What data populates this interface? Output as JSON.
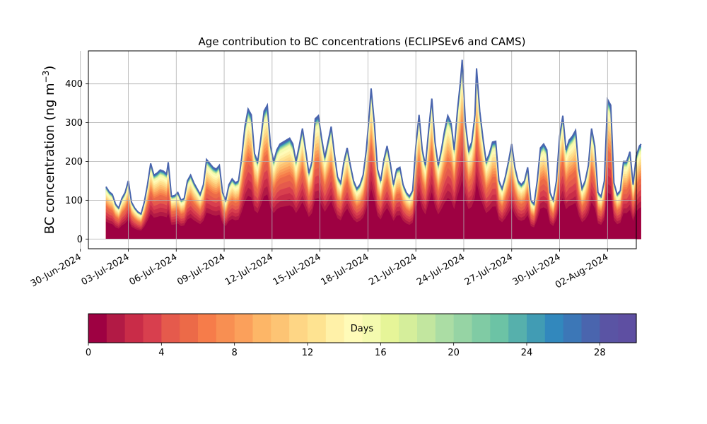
{
  "chart_data": {
    "type": "area",
    "title": "Age contribution to BC concentrations (ECLIPSEv6 and CAMS)",
    "ylabel": "BC concentration (ng m",
    "ylabel_sup": "−3",
    "ylabel_close": ")",
    "xlabel": "",
    "ylim": [
      -25,
      485
    ],
    "yticks": [
      0,
      100,
      200,
      300,
      400
    ],
    "grid": true,
    "x_axis": {
      "start_date": "2024-06-29",
      "xlim_days": [
        1.5,
        35.8
      ],
      "tick_days": [
        1,
        4,
        7,
        10,
        13,
        16,
        19,
        22,
        25,
        28,
        31,
        34
      ],
      "tick_labels": [
        "30-Jun-2024",
        "03-Jul-2024",
        "06-Jul-2024",
        "09-Jul-2024",
        "12-Jul-2024",
        "15-Jul-2024",
        "18-Jul-2024",
        "21-Jul-2024",
        "24-Jul-2024",
        "27-Jul-2024",
        "30-Jul-2024",
        "02-Aug-2024"
      ]
    },
    "total_series": [
      [
        2.6,
        135
      ],
      [
        2.8,
        122
      ],
      [
        3.0,
        115
      ],
      [
        3.2,
        90
      ],
      [
        3.4,
        80
      ],
      [
        3.6,
        105
      ],
      [
        3.8,
        120
      ],
      [
        4.0,
        150
      ],
      [
        4.2,
        95
      ],
      [
        4.4,
        80
      ],
      [
        4.6,
        70
      ],
      [
        4.8,
        65
      ],
      [
        5.0,
        95
      ],
      [
        5.2,
        140
      ],
      [
        5.4,
        195
      ],
      [
        5.6,
        165
      ],
      [
        5.8,
        170
      ],
      [
        6.0,
        178
      ],
      [
        6.2,
        175
      ],
      [
        6.4,
        168
      ],
      [
        6.5,
        198
      ],
      [
        6.7,
        110
      ],
      [
        6.9,
        112
      ],
      [
        7.1,
        120
      ],
      [
        7.3,
        100
      ],
      [
        7.5,
        105
      ],
      [
        7.7,
        150
      ],
      [
        7.9,
        165
      ],
      [
        8.1,
        145
      ],
      [
        8.3,
        130
      ],
      [
        8.5,
        115
      ],
      [
        8.7,
        140
      ],
      [
        8.9,
        205
      ],
      [
        9.1,
        195
      ],
      [
        9.3,
        185
      ],
      [
        9.5,
        180
      ],
      [
        9.7,
        190
      ],
      [
        9.9,
        120
      ],
      [
        10.1,
        100
      ],
      [
        10.3,
        140
      ],
      [
        10.5,
        155
      ],
      [
        10.7,
        145
      ],
      [
        10.9,
        150
      ],
      [
        11.1,
        210
      ],
      [
        11.3,
        290
      ],
      [
        11.5,
        335
      ],
      [
        11.7,
        320
      ],
      [
        11.9,
        220
      ],
      [
        12.1,
        200
      ],
      [
        12.3,
        260
      ],
      [
        12.5,
        330
      ],
      [
        12.7,
        345
      ],
      [
        12.9,
        240
      ],
      [
        13.1,
        200
      ],
      [
        13.3,
        230
      ],
      [
        13.5,
        245
      ],
      [
        13.7,
        250
      ],
      [
        13.9,
        255
      ],
      [
        14.1,
        260
      ],
      [
        14.3,
        245
      ],
      [
        14.5,
        200
      ],
      [
        14.7,
        240
      ],
      [
        14.9,
        285
      ],
      [
        15.1,
        230
      ],
      [
        15.3,
        170
      ],
      [
        15.5,
        200
      ],
      [
        15.7,
        310
      ],
      [
        15.9,
        318
      ],
      [
        16.1,
        260
      ],
      [
        16.3,
        210
      ],
      [
        16.5,
        250
      ],
      [
        16.7,
        290
      ],
      [
        16.9,
        220
      ],
      [
        17.1,
        160
      ],
      [
        17.3,
        145
      ],
      [
        17.5,
        200
      ],
      [
        17.7,
        235
      ],
      [
        17.9,
        190
      ],
      [
        18.1,
        150
      ],
      [
        18.3,
        130
      ],
      [
        18.5,
        140
      ],
      [
        18.7,
        165
      ],
      [
        18.9,
        230
      ],
      [
        19.1,
        330
      ],
      [
        19.2,
        388
      ],
      [
        19.4,
        300
      ],
      [
        19.6,
        180
      ],
      [
        19.8,
        150
      ],
      [
        20.0,
        205
      ],
      [
        20.2,
        240
      ],
      [
        20.4,
        195
      ],
      [
        20.6,
        140
      ],
      [
        20.8,
        180
      ],
      [
        21.0,
        185
      ],
      [
        21.2,
        140
      ],
      [
        21.4,
        120
      ],
      [
        21.6,
        110
      ],
      [
        21.8,
        125
      ],
      [
        22.0,
        240
      ],
      [
        22.2,
        320
      ],
      [
        22.4,
        230
      ],
      [
        22.6,
        190
      ],
      [
        22.8,
        280
      ],
      [
        23.0,
        362
      ],
      [
        23.2,
        250
      ],
      [
        23.4,
        190
      ],
      [
        23.6,
        230
      ],
      [
        23.8,
        280
      ],
      [
        24.0,
        318
      ],
      [
        24.2,
        300
      ],
      [
        24.4,
        230
      ],
      [
        24.6,
        330
      ],
      [
        24.8,
        410
      ],
      [
        24.9,
        462
      ],
      [
        25.1,
        300
      ],
      [
        25.3,
        230
      ],
      [
        25.5,
        250
      ],
      [
        25.7,
        320
      ],
      [
        25.8,
        440
      ],
      [
        26.0,
        330
      ],
      [
        26.2,
        260
      ],
      [
        26.4,
        200
      ],
      [
        26.6,
        220
      ],
      [
        26.8,
        250
      ],
      [
        27.0,
        252
      ],
      [
        27.2,
        150
      ],
      [
        27.4,
        130
      ],
      [
        27.6,
        160
      ],
      [
        27.8,
        200
      ],
      [
        28.0,
        245
      ],
      [
        28.2,
        185
      ],
      [
        28.4,
        150
      ],
      [
        28.6,
        140
      ],
      [
        28.8,
        150
      ],
      [
        29.0,
        185
      ],
      [
        29.2,
        100
      ],
      [
        29.4,
        90
      ],
      [
        29.6,
        150
      ],
      [
        29.8,
        235
      ],
      [
        30.0,
        245
      ],
      [
        30.2,
        230
      ],
      [
        30.4,
        120
      ],
      [
        30.6,
        100
      ],
      [
        30.8,
        150
      ],
      [
        31.0,
        265
      ],
      [
        31.2,
        318
      ],
      [
        31.4,
        230
      ],
      [
        31.6,
        255
      ],
      [
        31.8,
        265
      ],
      [
        32.0,
        280
      ],
      [
        32.2,
        180
      ],
      [
        32.4,
        130
      ],
      [
        32.6,
        150
      ],
      [
        32.8,
        190
      ],
      [
        33.0,
        285
      ],
      [
        33.2,
        240
      ],
      [
        33.4,
        120
      ],
      [
        33.6,
        110
      ],
      [
        33.8,
        150
      ],
      [
        34.0,
        360
      ],
      [
        34.2,
        345
      ],
      [
        34.4,
        145
      ],
      [
        34.6,
        115
      ],
      [
        34.8,
        125
      ],
      [
        35.0,
        200
      ],
      [
        35.2,
        200
      ],
      [
        35.4,
        225
      ],
      [
        35.6,
        140
      ],
      [
        35.8,
        215
      ],
      [
        36.0,
        240
      ],
      [
        36.1,
        245
      ]
    ],
    "colorbar": {
      "label": "Days",
      "vmin": 0,
      "vmax": 30,
      "ticks": [
        0,
        4,
        8,
        12,
        16,
        20,
        24,
        28
      ],
      "colors": [
        "#9e0142",
        "#b21a45",
        "#c92c48",
        "#d83f4e",
        "#e55a4c",
        "#ec6a48",
        "#f67c4a",
        "#f88f52",
        "#fba05b",
        "#fdb667",
        "#fdc474",
        "#fed685",
        "#fee391",
        "#fff1a8",
        "#fffbb8",
        "#f4faaf",
        "#e6f598",
        "#d5ee9b",
        "#c2e69f",
        "#abdda4",
        "#96d4a4",
        "#80cba4",
        "#6cc3a5",
        "#56b0ac",
        "#419cb4",
        "#3288bd",
        "#3c77b7",
        "#4a65ae",
        "#5a54a4",
        "#5e4fa2"
      ]
    }
  }
}
